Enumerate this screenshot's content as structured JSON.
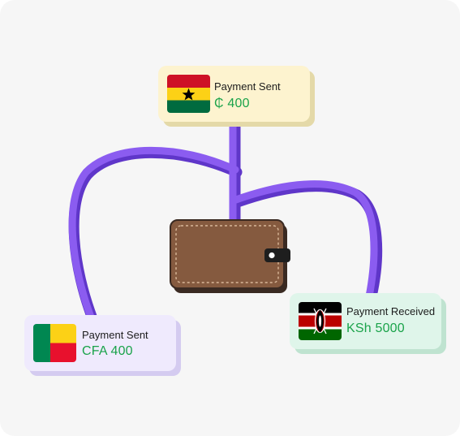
{
  "transfers": {
    "ghana": {
      "label": "Payment Sent",
      "amount": "₵ 400",
      "flag_icon": "ghana-flag-icon",
      "card_color": "#fdf3cf",
      "card_shadow": "#e4d9a8"
    },
    "benin": {
      "label": "Payment Sent",
      "amount": "CFA 400",
      "flag_icon": "benin-flag-icon",
      "card_color": "#efeafd",
      "card_shadow": "#d4cbf0"
    },
    "kenya": {
      "label": "Payment Received",
      "amount": "KSh 5000",
      "flag_icon": "kenya-flag-icon",
      "card_color": "#dff5ea",
      "card_shadow": "#bfe3d0"
    }
  },
  "wallet_icon": "wallet-icon",
  "colors": {
    "background": "#f6f6f6",
    "connector": "#8b5cf0",
    "connector_shadow": "#5f36c9",
    "amount_green": "#1aa34a",
    "wallet_leather": "#855a3f",
    "wallet_shadow": "#3a2a22"
  }
}
